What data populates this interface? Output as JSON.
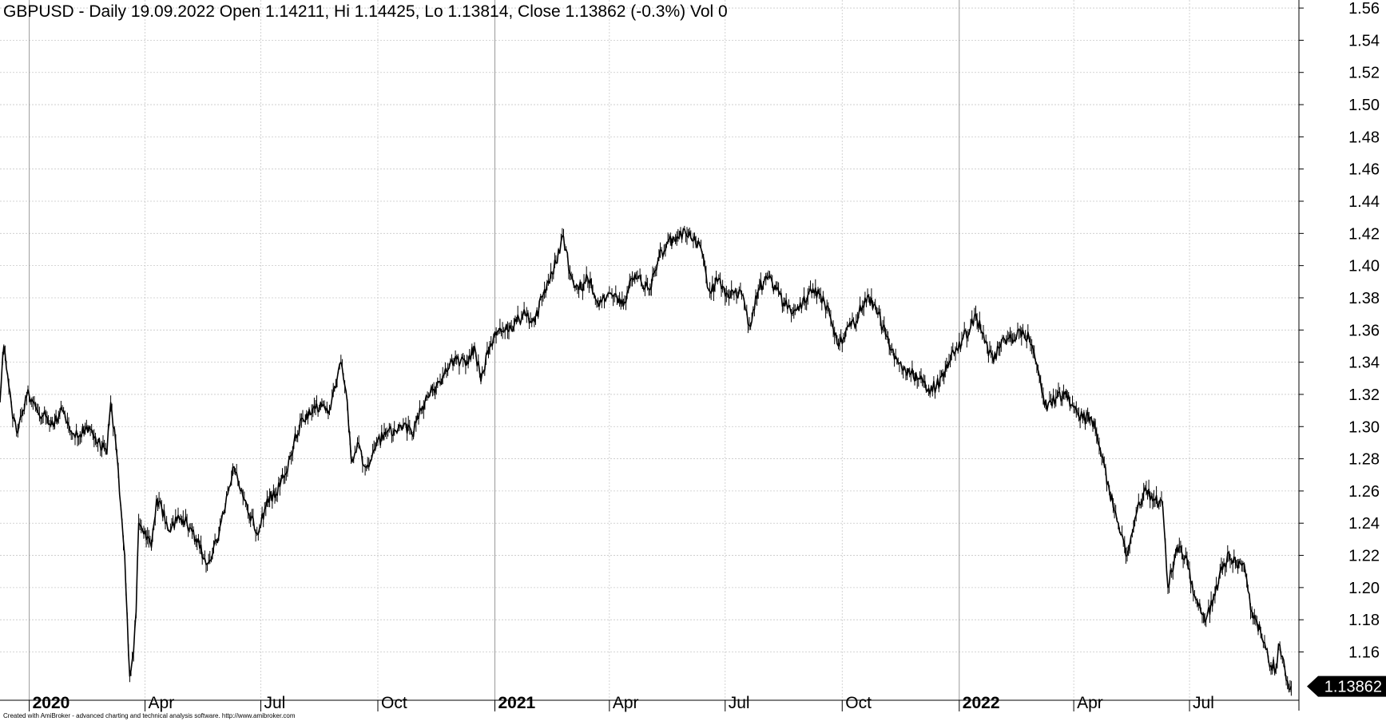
{
  "chart_data": {
    "type": "candlestick-line",
    "title": "GBPUSD - Daily 19.09.2022 Open 1.14211, Hi 1.14425, Lo 1.13814, Close 1.13862 (-0.3%) Vol 0",
    "symbol": "GBPUSD",
    "interval": "Daily",
    "last_bar": {
      "date": "19.09.2022",
      "open": 1.14211,
      "high": 1.14425,
      "low": 1.13814,
      "close": 1.13862,
      "change_pct": -0.3,
      "volume": 0
    },
    "price_label": "1.13862",
    "ylim": [
      1.13,
      1.565
    ],
    "yticks": [
      1.16,
      1.18,
      1.2,
      1.22,
      1.24,
      1.26,
      1.28,
      1.3,
      1.32,
      1.34,
      1.36,
      1.38,
      1.4,
      1.42,
      1.44,
      1.46,
      1.48,
      1.5,
      1.52,
      1.54,
      1.56
    ],
    "ytick_labels": [
      "1.16",
      "1.18",
      "1.20",
      "1.22",
      "1.24",
      "1.26",
      "1.28",
      "1.30",
      "1.32",
      "1.34",
      "1.36",
      "1.38",
      "1.40",
      "1.42",
      "1.44",
      "1.46",
      "1.48",
      "1.50",
      "1.52",
      "1.54",
      "1.56"
    ],
    "xlim": [
      "2019-12-09",
      "2022-09-25"
    ],
    "xticks": [
      {
        "date": "2020-01-01",
        "label": "2020",
        "major": true
      },
      {
        "date": "2020-04-01",
        "label": "Apr",
        "major": false
      },
      {
        "date": "2020-07-01",
        "label": "Jul",
        "major": false
      },
      {
        "date": "2020-10-01",
        "label": "Oct",
        "major": false
      },
      {
        "date": "2021-01-01",
        "label": "2021",
        "major": true
      },
      {
        "date": "2021-04-01",
        "label": "Apr",
        "major": false
      },
      {
        "date": "2021-07-01",
        "label": "Jul",
        "major": false
      },
      {
        "date": "2021-10-01",
        "label": "Oct",
        "major": false
      },
      {
        "date": "2022-01-01",
        "label": "2022",
        "major": true
      },
      {
        "date": "2022-04-01",
        "label": "Apr",
        "major": false
      },
      {
        "date": "2022-07-01",
        "label": "Jul",
        "major": false
      }
    ],
    "grid": true,
    "series": [
      {
        "close_path": [
          [
            "2019-12-09",
            1.315
          ],
          [
            "2019-12-12",
            1.35
          ],
          [
            "2019-12-16",
            1.325
          ],
          [
            "2019-12-19",
            1.305
          ],
          [
            "2019-12-23",
            1.296
          ],
          [
            "2019-12-27",
            1.31
          ],
          [
            "2019-12-31",
            1.323
          ],
          [
            "2020-01-06",
            1.312
          ],
          [
            "2020-01-10",
            1.305
          ],
          [
            "2020-01-15",
            1.306
          ],
          [
            "2020-01-20",
            1.3
          ],
          [
            "2020-01-27",
            1.31
          ],
          [
            "2020-02-03",
            1.297
          ],
          [
            "2020-02-10",
            1.295
          ],
          [
            "2020-02-17",
            1.3
          ],
          [
            "2020-02-24",
            1.29
          ],
          [
            "2020-03-02",
            1.283
          ],
          [
            "2020-03-05",
            1.315
          ],
          [
            "2020-03-09",
            1.29
          ],
          [
            "2020-03-13",
            1.25
          ],
          [
            "2020-03-16",
            1.22
          ],
          [
            "2020-03-19",
            1.16
          ],
          [
            "2020-03-20",
            1.145
          ],
          [
            "2020-03-23",
            1.16
          ],
          [
            "2020-03-25",
            1.185
          ],
          [
            "2020-03-27",
            1.24
          ],
          [
            "2020-04-01",
            1.235
          ],
          [
            "2020-04-06",
            1.225
          ],
          [
            "2020-04-10",
            1.255
          ],
          [
            "2020-04-14",
            1.25
          ],
          [
            "2020-04-20",
            1.235
          ],
          [
            "2020-04-27",
            1.245
          ],
          [
            "2020-05-04",
            1.24
          ],
          [
            "2020-05-11",
            1.23
          ],
          [
            "2020-05-18",
            1.218
          ],
          [
            "2020-05-22",
            1.217
          ],
          [
            "2020-05-29",
            1.232
          ],
          [
            "2020-06-05",
            1.258
          ],
          [
            "2020-06-10",
            1.275
          ],
          [
            "2020-06-15",
            1.26
          ],
          [
            "2020-06-22",
            1.245
          ],
          [
            "2020-06-29",
            1.233
          ],
          [
            "2020-07-06",
            1.255
          ],
          [
            "2020-07-13",
            1.258
          ],
          [
            "2020-07-20",
            1.27
          ],
          [
            "2020-07-27",
            1.29
          ],
          [
            "2020-08-03",
            1.305
          ],
          [
            "2020-08-10",
            1.308
          ],
          [
            "2020-08-17",
            1.315
          ],
          [
            "2020-08-24",
            1.31
          ],
          [
            "2020-08-31",
            1.335
          ],
          [
            "2020-09-02",
            1.34
          ],
          [
            "2020-09-07",
            1.315
          ],
          [
            "2020-09-10",
            1.28
          ],
          [
            "2020-09-15",
            1.29
          ],
          [
            "2020-09-21",
            1.275
          ],
          [
            "2020-09-24",
            1.275
          ],
          [
            "2020-09-30",
            1.29
          ],
          [
            "2020-10-07",
            1.295
          ],
          [
            "2020-10-14",
            1.298
          ],
          [
            "2020-10-21",
            1.3
          ],
          [
            "2020-10-28",
            1.295
          ],
          [
            "2020-11-04",
            1.31
          ],
          [
            "2020-11-11",
            1.32
          ],
          [
            "2020-11-18",
            1.328
          ],
          [
            "2020-11-25",
            1.335
          ],
          [
            "2020-12-02",
            1.342
          ],
          [
            "2020-12-09",
            1.338
          ],
          [
            "2020-12-16",
            1.35
          ],
          [
            "2020-12-21",
            1.328
          ],
          [
            "2020-12-28",
            1.35
          ],
          [
            "2021-01-04",
            1.36
          ],
          [
            "2021-01-11",
            1.36
          ],
          [
            "2021-01-18",
            1.365
          ],
          [
            "2021-01-25",
            1.37
          ],
          [
            "2021-02-01",
            1.365
          ],
          [
            "2021-02-08",
            1.382
          ],
          [
            "2021-02-15",
            1.395
          ],
          [
            "2021-02-24",
            1.418
          ],
          [
            "2021-03-01",
            1.395
          ],
          [
            "2021-03-08",
            1.385
          ],
          [
            "2021-03-15",
            1.392
          ],
          [
            "2021-03-22",
            1.378
          ],
          [
            "2021-03-29",
            1.378
          ],
          [
            "2021-04-05",
            1.382
          ],
          [
            "2021-04-12",
            1.375
          ],
          [
            "2021-04-19",
            1.392
          ],
          [
            "2021-04-26",
            1.39
          ],
          [
            "2021-05-03",
            1.385
          ],
          [
            "2021-05-10",
            1.405
          ],
          [
            "2021-05-17",
            1.415
          ],
          [
            "2021-05-24",
            1.418
          ],
          [
            "2021-05-31",
            1.42
          ],
          [
            "2021-06-07",
            1.418
          ],
          [
            "2021-06-14",
            1.405
          ],
          [
            "2021-06-18",
            1.385
          ],
          [
            "2021-06-25",
            1.39
          ],
          [
            "2021-07-02",
            1.383
          ],
          [
            "2021-07-09",
            1.385
          ],
          [
            "2021-07-16",
            1.378
          ],
          [
            "2021-07-20",
            1.363
          ],
          [
            "2021-07-27",
            1.385
          ],
          [
            "2021-08-03",
            1.392
          ],
          [
            "2021-08-10",
            1.385
          ],
          [
            "2021-08-17",
            1.375
          ],
          [
            "2021-08-24",
            1.372
          ],
          [
            "2021-08-31",
            1.378
          ],
          [
            "2021-09-07",
            1.383
          ],
          [
            "2021-09-14",
            1.382
          ],
          [
            "2021-09-21",
            1.37
          ],
          [
            "2021-09-28",
            1.35
          ],
          [
            "2021-10-05",
            1.362
          ],
          [
            "2021-10-12",
            1.365
          ],
          [
            "2021-10-19",
            1.38
          ],
          [
            "2021-10-26",
            1.376
          ],
          [
            "2021-11-02",
            1.362
          ],
          [
            "2021-11-09",
            1.348
          ],
          [
            "2021-11-16",
            1.34
          ],
          [
            "2021-11-23",
            1.333
          ],
          [
            "2021-11-30",
            1.33
          ],
          [
            "2021-12-07",
            1.322
          ],
          [
            "2021-12-14",
            1.325
          ],
          [
            "2021-12-21",
            1.335
          ],
          [
            "2021-12-28",
            1.345
          ],
          [
            "2022-01-04",
            1.355
          ],
          [
            "2022-01-10",
            1.362
          ],
          [
            "2022-01-14",
            1.37
          ],
          [
            "2022-01-21",
            1.352
          ],
          [
            "2022-01-28",
            1.34
          ],
          [
            "2022-02-04",
            1.355
          ],
          [
            "2022-02-11",
            1.355
          ],
          [
            "2022-02-18",
            1.36
          ],
          [
            "2022-02-25",
            1.355
          ],
          [
            "2022-03-04",
            1.335
          ],
          [
            "2022-03-11",
            1.31
          ],
          [
            "2022-03-18",
            1.318
          ],
          [
            "2022-03-25",
            1.32
          ],
          [
            "2022-04-01",
            1.312
          ],
          [
            "2022-04-08",
            1.305
          ],
          [
            "2022-04-15",
            1.305
          ],
          [
            "2022-04-22",
            1.285
          ],
          [
            "2022-04-29",
            1.26
          ],
          [
            "2022-05-06",
            1.24
          ],
          [
            "2022-05-13",
            1.22
          ],
          [
            "2022-05-20",
            1.245
          ],
          [
            "2022-05-27",
            1.262
          ],
          [
            "2022-06-03",
            1.255
          ],
          [
            "2022-06-10",
            1.25
          ],
          [
            "2022-06-14",
            1.2
          ],
          [
            "2022-06-21",
            1.225
          ],
          [
            "2022-06-28",
            1.22
          ],
          [
            "2022-07-05",
            1.195
          ],
          [
            "2022-07-14",
            1.18
          ],
          [
            "2022-07-21",
            1.195
          ],
          [
            "2022-07-28",
            1.215
          ],
          [
            "2022-08-01",
            1.222
          ],
          [
            "2022-08-08",
            1.212
          ],
          [
            "2022-08-12",
            1.215
          ],
          [
            "2022-08-19",
            1.185
          ],
          [
            "2022-08-26",
            1.172
          ],
          [
            "2022-09-01",
            1.155
          ],
          [
            "2022-09-07",
            1.15
          ],
          [
            "2022-09-09",
            1.165
          ],
          [
            "2022-09-13",
            1.155
          ],
          [
            "2022-09-16",
            1.142
          ],
          [
            "2022-09-19",
            1.13862
          ]
        ]
      }
    ]
  },
  "footer": {
    "credit": "Created with AmiBroker - advanced charting and technical analysis software. http://www.amibroker.com"
  },
  "colors": {
    "background": "#ffffff",
    "grid": "#c8c8c8",
    "price": "#000000",
    "label_bg": "#000000",
    "label_text": "#ffffff"
  }
}
